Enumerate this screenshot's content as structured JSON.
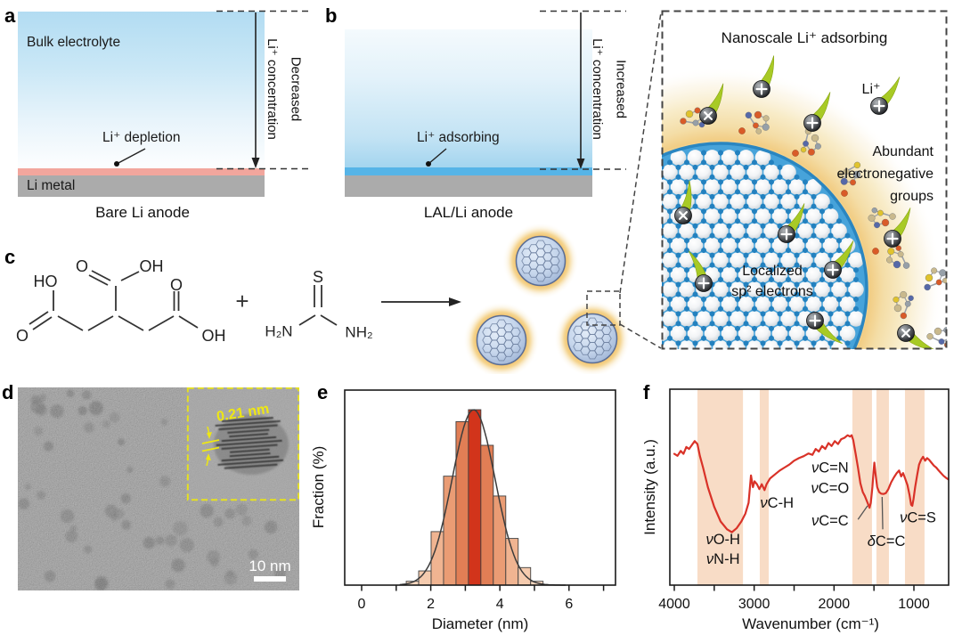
{
  "panel_a": {
    "letter": "a",
    "region_label": "Bulk electrolyte",
    "callout": "Li⁺ depletion",
    "metal_label": "Li metal",
    "caption": "Bare Li anode",
    "side_label_rotated": "Li⁺ concentration",
    "side_label_direction": "Decreased"
  },
  "panel_b": {
    "letter": "b",
    "callout": "Li⁺ adsorbing",
    "caption": "LAL/Li anode",
    "side_label_rotated": "Li⁺ concentration",
    "side_label_direction": "Increased"
  },
  "panel_zoom": {
    "title": "Nanoscale Li⁺ adsorbing",
    "ion_label": "Li⁺",
    "right_annotation_lines": [
      "Abundant",
      "electronegative",
      "groups"
    ],
    "core_annotation_lines": [
      "Localized",
      "sp² electrons"
    ]
  },
  "panel_c": {
    "letter": "c",
    "reactant1_atom_labels": [
      "O",
      "OH",
      "HO",
      "O",
      "O",
      "OH"
    ],
    "plus_sign": "+",
    "reactant2_atom_labels": [
      "S",
      "H₂N",
      "NH₂"
    ]
  },
  "panel_d": {
    "letter": "d",
    "lattice_spacing_label": "0.21 nm",
    "scale_bar_label": "10 nm"
  },
  "panel_e": {
    "letter": "e"
  },
  "panel_f": {
    "letter": "f"
  },
  "colors": {
    "electrolyte_blue": "#b5ddf2",
    "anode_pink": "#f2a69d",
    "metal_gray": "#ababab",
    "adsorb_layer_blue": "#56b4e7",
    "lattice_blue": "#47a3da",
    "shell_yellow": "#f4dda6",
    "ion_tail_green": "#a8ca25",
    "dot_fill_blue": "#c6d6ec",
    "halo_orange": "#f2bf62",
    "ftir_line_red": "#d93228",
    "band_peach": "#f8dcc6",
    "hist_peak_red": "#d2341b"
  },
  "chart_data": [
    {
      "id": "size_histogram",
      "type": "bar",
      "title": "",
      "xlabel": "Diameter (nm)",
      "ylabel": "Fraction (%)",
      "xlim": [
        -0.55,
        7.3
      ],
      "x_ticks_labeled": [
        0,
        2,
        4,
        6
      ],
      "x_ticks_minor": [
        1,
        3,
        5,
        7
      ],
      "y_tick_labels": "none (unlabeled axis)",
      "bin_width": 0.36,
      "bin_centers": [
        1.47,
        1.83,
        2.19,
        2.55,
        2.91,
        3.27,
        3.63,
        3.99,
        4.35,
        4.71,
        5.07
      ],
      "values_rel": [
        0.022,
        0.081,
        0.305,
        0.621,
        0.932,
        1.0,
        0.797,
        0.508,
        0.266,
        0.1,
        0.022
      ],
      "bar_colors": [
        "#f7d7bf",
        "#f5cbae",
        "#f0b491",
        "#ea9c74",
        "#e17e55",
        "#d2341b",
        "#e17e55",
        "#ea9c74",
        "#f0b491",
        "#f5cbae",
        "#f7d7bf"
      ],
      "fit_curve": {
        "type": "gaussian",
        "mean": 3.24,
        "sigma": 0.62,
        "peak": 1.0,
        "color": "#3c3c3c"
      }
    },
    {
      "id": "ftir_spectrum",
      "type": "line",
      "xlabel": "Wavenumber (cm⁻¹)",
      "ylabel": "Intensity (a.u.)",
      "x_axis_reversed": true,
      "xlim": [
        4000,
        565
      ],
      "x_ticks_labeled": [
        4000,
        3000,
        2000,
        1000
      ],
      "x_ticks_minor": [
        3500,
        2500,
        1500
      ],
      "line_color": "#d93228",
      "band_color": "#f8dcc6",
      "highlight_bands": [
        [
          3710,
          3140
        ],
        [
          2930,
          2818
        ],
        [
          1770,
          1525
        ],
        [
          1469,
          1313
        ],
        [
          1112,
          867
        ]
      ],
      "annotations": [
        {
          "lines": [
            "νO-H",
            "νN-H"
          ],
          "wn": 3390,
          "frac": [
            0.235,
            0.135
          ]
        },
        {
          "lines": [
            "νC-H"
          ],
          "wn": 2715,
          "frac": [
            0.42
          ]
        },
        {
          "lines": [
            "νC=N",
            "νC=O"
          ],
          "wn": 2050,
          "frac": [
            0.6,
            0.495
          ]
        },
        {
          "lines": [
            "νC=C"
          ],
          "wn": 2050,
          "frac": [
            0.33
          ],
          "leader": [
            [
              1700,
              0.335
            ],
            [
              1580,
              0.405
            ]
          ]
        },
        {
          "lines": [
            "δC=C"
          ],
          "wn": 1345,
          "frac": [
            0.225
          ],
          "leader": [
            [
              1390,
              0.285
            ],
            [
              1398,
              0.45
            ]
          ]
        },
        {
          "lines": [
            "νC=S"
          ],
          "wn": 950,
          "frac": [
            0.345
          ]
        }
      ],
      "points": [
        [
          4000,
          0.67
        ],
        [
          3960,
          0.66
        ],
        [
          3920,
          0.685
        ],
        [
          3885,
          0.67
        ],
        [
          3850,
          0.705
        ],
        [
          3815,
          0.695
        ],
        [
          3780,
          0.715
        ],
        [
          3745,
          0.735
        ],
        [
          3710,
          0.72
        ],
        [
          3680,
          0.66
        ],
        [
          3640,
          0.6
        ],
        [
          3580,
          0.5
        ],
        [
          3500,
          0.4
        ],
        [
          3420,
          0.325
        ],
        [
          3340,
          0.285
        ],
        [
          3280,
          0.27
        ],
        [
          3220,
          0.29
        ],
        [
          3160,
          0.325
        ],
        [
          3110,
          0.365
        ],
        [
          3070,
          0.42
        ],
        [
          3040,
          0.56
        ],
        [
          3015,
          0.5
        ],
        [
          2995,
          0.53
        ],
        [
          2965,
          0.515
        ],
        [
          2935,
          0.49
        ],
        [
          2905,
          0.515
        ],
        [
          2870,
          0.485
        ],
        [
          2845,
          0.515
        ],
        [
          2800,
          0.545
        ],
        [
          2740,
          0.565
        ],
        [
          2680,
          0.585
        ],
        [
          2620,
          0.6
        ],
        [
          2560,
          0.615
        ],
        [
          2500,
          0.635
        ],
        [
          2440,
          0.648
        ],
        [
          2380,
          0.658
        ],
        [
          2320,
          0.672
        ],
        [
          2270,
          0.665
        ],
        [
          2230,
          0.695
        ],
        [
          2190,
          0.682
        ],
        [
          2150,
          0.71
        ],
        [
          2110,
          0.695
        ],
        [
          2070,
          0.725
        ],
        [
          2030,
          0.71
        ],
        [
          1990,
          0.735
        ],
        [
          1950,
          0.72
        ],
        [
          1910,
          0.745
        ],
        [
          1870,
          0.752
        ],
        [
          1830,
          0.765
        ],
        [
          1800,
          0.758
        ],
        [
          1780,
          0.765
        ],
        [
          1760,
          0.74
        ],
        [
          1730,
          0.67
        ],
        [
          1700,
          0.6
        ],
        [
          1670,
          0.52
        ],
        [
          1640,
          0.475
        ],
        [
          1615,
          0.455
        ],
        [
          1590,
          0.43
        ],
        [
          1570,
          0.41
        ],
        [
          1555,
          0.395
        ],
        [
          1540,
          0.42
        ],
        [
          1520,
          0.5
        ],
        [
          1505,
          0.58
        ],
        [
          1495,
          0.625
        ],
        [
          1480,
          0.565
        ],
        [
          1460,
          0.5
        ],
        [
          1435,
          0.475
        ],
        [
          1410,
          0.467
        ],
        [
          1380,
          0.465
        ],
        [
          1350,
          0.47
        ],
        [
          1320,
          0.49
        ],
        [
          1285,
          0.525
        ],
        [
          1250,
          0.55
        ],
        [
          1215,
          0.572
        ],
        [
          1185,
          0.585
        ],
        [
          1160,
          0.555
        ],
        [
          1135,
          0.572
        ],
        [
          1110,
          0.545
        ],
        [
          1080,
          0.51
        ],
        [
          1055,
          0.46
        ],
        [
          1035,
          0.41
        ],
        [
          1020,
          0.405
        ],
        [
          1005,
          0.44
        ],
        [
          985,
          0.5
        ],
        [
          960,
          0.56
        ],
        [
          935,
          0.615
        ],
        [
          910,
          0.64
        ],
        [
          885,
          0.655
        ],
        [
          860,
          0.635
        ],
        [
          835,
          0.648
        ],
        [
          810,
          0.64
        ],
        [
          780,
          0.625
        ],
        [
          750,
          0.61
        ],
        [
          720,
          0.6
        ],
        [
          690,
          0.585
        ],
        [
          660,
          0.572
        ],
        [
          630,
          0.558
        ],
        [
          600,
          0.548
        ],
        [
          570,
          0.54
        ]
      ]
    }
  ]
}
